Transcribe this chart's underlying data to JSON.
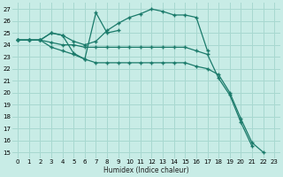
{
  "bg_color": "#c8ece6",
  "grid_color": "#a8d8d0",
  "line_color": "#1a7a6a",
  "xlabel": "Humidex (Indice chaleur)",
  "xlim": [
    -0.5,
    23.5
  ],
  "ylim": [
    14.5,
    27.5
  ],
  "xticks": [
    0,
    1,
    2,
    3,
    4,
    5,
    6,
    7,
    8,
    9,
    10,
    11,
    12,
    13,
    14,
    15,
    16,
    17,
    18,
    19,
    20,
    21,
    22,
    23
  ],
  "yticks": [
    15,
    16,
    17,
    18,
    19,
    20,
    21,
    22,
    23,
    24,
    25,
    26,
    27
  ],
  "series": [
    {
      "x": [
        0,
        1,
        2,
        3,
        4,
        5,
        6,
        7,
        8,
        9
      ],
      "y": [
        24.4,
        24.4,
        24.4,
        25.0,
        24.8,
        23.3,
        22.8,
        26.7,
        25.0,
        25.2
      ]
    },
    {
      "x": [
        0,
        1,
        2,
        3,
        4,
        5,
        6,
        7,
        8,
        9,
        10,
        11,
        12,
        13,
        14,
        15,
        16,
        17
      ],
      "y": [
        24.4,
        24.4,
        24.4,
        25.0,
        24.8,
        24.3,
        24.0,
        24.3,
        25.2,
        25.8,
        26.3,
        26.6,
        27.0,
        26.8,
        26.5,
        26.5,
        26.3,
        23.5
      ]
    },
    {
      "x": [
        0,
        1,
        2,
        3,
        4,
        5,
        6,
        7,
        8,
        9,
        10,
        11,
        12,
        13,
        14,
        15,
        16,
        17,
        18,
        19,
        20,
        21
      ],
      "y": [
        24.4,
        24.4,
        24.4,
        24.2,
        24.0,
        24.0,
        23.8,
        23.8,
        23.8,
        23.8,
        23.8,
        23.8,
        23.8,
        23.8,
        23.8,
        23.8,
        23.5,
        23.2,
        21.2,
        19.8,
        17.5,
        15.5
      ]
    },
    {
      "x": [
        0,
        1,
        2,
        3,
        4,
        5,
        6,
        7,
        8,
        9,
        10,
        11,
        12,
        13,
        14,
        15,
        16,
        17,
        18,
        19,
        20,
        21,
        22
      ],
      "y": [
        24.4,
        24.4,
        24.4,
        23.8,
        23.5,
        23.2,
        22.8,
        22.5,
        22.5,
        22.5,
        22.5,
        22.5,
        22.5,
        22.5,
        22.5,
        22.5,
        22.2,
        22.0,
        21.5,
        20.0,
        17.8,
        15.8,
        15.0
      ]
    }
  ]
}
